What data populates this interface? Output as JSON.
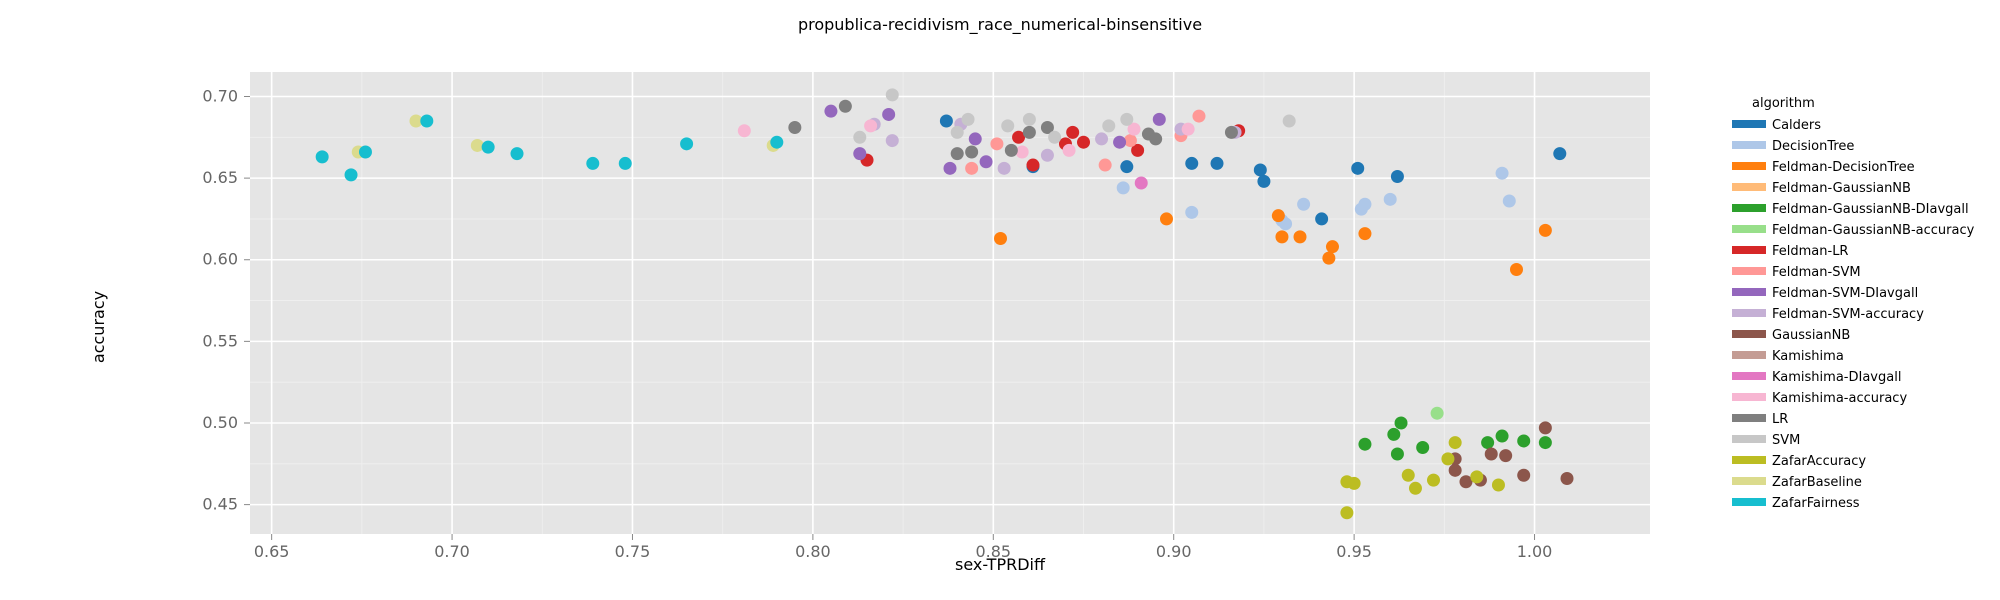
{
  "chart_data": {
    "type": "scatter",
    "title": "propublica-recidivism_race_numerical-binsensitive",
    "xlabel": "sex-TPRDiff",
    "ylabel": "accuracy",
    "xlim": [
      0.644,
      1.032
    ],
    "ylim": [
      0.432,
      0.715
    ],
    "x_ticks": [
      "0.65",
      "0.70",
      "0.75",
      "0.80",
      "0.85",
      "0.90",
      "0.95",
      "1.00"
    ],
    "y_ticks": [
      "0.45",
      "0.50",
      "0.55",
      "0.60",
      "0.65",
      "0.70"
    ],
    "grid": true,
    "legend": {
      "title": "algorithm",
      "placement": "right"
    },
    "series": [
      {
        "name": "Calders",
        "color": "#1f77b4",
        "points": [
          [
            0.837,
            0.685
          ],
          [
            0.861,
            0.657
          ],
          [
            0.887,
            0.657
          ],
          [
            0.905,
            0.659
          ],
          [
            0.912,
            0.659
          ],
          [
            0.924,
            0.655
          ],
          [
            0.925,
            0.648
          ],
          [
            0.941,
            0.625
          ],
          [
            0.951,
            0.656
          ],
          [
            0.962,
            0.651
          ],
          [
            1.007,
            0.665
          ]
        ]
      },
      {
        "name": "DecisionTree",
        "color": "#aec7e8",
        "points": [
          [
            0.886,
            0.644
          ],
          [
            0.905,
            0.629
          ],
          [
            0.93,
            0.624
          ],
          [
            0.931,
            0.622
          ],
          [
            0.936,
            0.634
          ],
          [
            0.952,
            0.631
          ],
          [
            0.953,
            0.634
          ],
          [
            0.96,
            0.637
          ],
          [
            0.991,
            0.653
          ],
          [
            0.993,
            0.636
          ]
        ]
      },
      {
        "name": "Feldman-DecisionTree",
        "color": "#ff7f0e",
        "points": [
          [
            0.852,
            0.613
          ],
          [
            0.898,
            0.625
          ],
          [
            0.929,
            0.627
          ],
          [
            0.93,
            0.614
          ],
          [
            0.935,
            0.614
          ],
          [
            0.943,
            0.601
          ],
          [
            0.944,
            0.608
          ],
          [
            0.953,
            0.616
          ],
          [
            0.995,
            0.594
          ],
          [
            1.003,
            0.618
          ]
        ]
      },
      {
        "name": "Feldman-GaussianNB",
        "color": "#ffbb78",
        "points": []
      },
      {
        "name": "Feldman-GaussianNB-DIavgall",
        "color": "#2ca02c",
        "points": [
          [
            0.953,
            0.487
          ],
          [
            0.961,
            0.493
          ],
          [
            0.962,
            0.481
          ],
          [
            0.963,
            0.5
          ],
          [
            0.969,
            0.485
          ],
          [
            0.987,
            0.488
          ],
          [
            0.991,
            0.492
          ],
          [
            0.997,
            0.489
          ],
          [
            1.003,
            0.488
          ]
        ]
      },
      {
        "name": "Feldman-GaussianNB-accuracy",
        "color": "#98df8a",
        "points": [
          [
            0.973,
            0.506
          ]
        ]
      },
      {
        "name": "Feldman-LR",
        "color": "#d62728",
        "points": [
          [
            0.815,
            0.661
          ],
          [
            0.857,
            0.675
          ],
          [
            0.861,
            0.658
          ],
          [
            0.87,
            0.671
          ],
          [
            0.872,
            0.678
          ],
          [
            0.875,
            0.672
          ],
          [
            0.89,
            0.667
          ],
          [
            0.918,
            0.679
          ]
        ]
      },
      {
        "name": "Feldman-SVM",
        "color": "#ff9896",
        "points": [
          [
            0.844,
            0.656
          ],
          [
            0.851,
            0.671
          ],
          [
            0.881,
            0.658
          ],
          [
            0.888,
            0.673
          ],
          [
            0.902,
            0.676
          ],
          [
            0.907,
            0.688
          ]
        ]
      },
      {
        "name": "Feldman-SVM-DIavgall",
        "color": "#9467bd",
        "points": [
          [
            0.805,
            0.691
          ],
          [
            0.813,
            0.665
          ],
          [
            0.821,
            0.689
          ],
          [
            0.838,
            0.656
          ],
          [
            0.845,
            0.674
          ],
          [
            0.848,
            0.66
          ],
          [
            0.885,
            0.672
          ],
          [
            0.896,
            0.686
          ]
        ]
      },
      {
        "name": "Feldman-SVM-accuracy",
        "color": "#c5b0d5",
        "points": [
          [
            0.817,
            0.683
          ],
          [
            0.822,
            0.673
          ],
          [
            0.841,
            0.683
          ],
          [
            0.853,
            0.656
          ],
          [
            0.865,
            0.664
          ],
          [
            0.88,
            0.674
          ],
          [
            0.902,
            0.68
          ],
          [
            0.917,
            0.678
          ]
        ]
      },
      {
        "name": "GaussianNB",
        "color": "#8c564b",
        "points": [
          [
            0.978,
            0.478
          ],
          [
            0.978,
            0.471
          ],
          [
            0.981,
            0.464
          ],
          [
            0.985,
            0.465
          ],
          [
            0.988,
            0.481
          ],
          [
            0.992,
            0.48
          ],
          [
            0.997,
            0.468
          ],
          [
            1.003,
            0.497
          ],
          [
            1.009,
            0.466
          ]
        ]
      },
      {
        "name": "Kamishima",
        "color": "#c49c94",
        "points": []
      },
      {
        "name": "Kamishima-DIavgall",
        "color": "#e377c2",
        "points": [
          [
            0.891,
            0.647
          ]
        ]
      },
      {
        "name": "Kamishima-accuracy",
        "color": "#f7b6d2",
        "points": [
          [
            0.781,
            0.679
          ],
          [
            0.816,
            0.682
          ],
          [
            0.858,
            0.666
          ],
          [
            0.871,
            0.667
          ],
          [
            0.889,
            0.68
          ],
          [
            0.904,
            0.68
          ]
        ]
      },
      {
        "name": "LR",
        "color": "#7f7f7f",
        "points": [
          [
            0.795,
            0.681
          ],
          [
            0.809,
            0.694
          ],
          [
            0.84,
            0.665
          ],
          [
            0.844,
            0.666
          ],
          [
            0.855,
            0.667
          ],
          [
            0.86,
            0.678
          ],
          [
            0.865,
            0.681
          ],
          [
            0.893,
            0.677
          ],
          [
            0.895,
            0.674
          ],
          [
            0.916,
            0.678
          ]
        ]
      },
      {
        "name": "SVM",
        "color": "#c7c7c7",
        "points": [
          [
            0.813,
            0.675
          ],
          [
            0.822,
            0.701
          ],
          [
            0.84,
            0.678
          ],
          [
            0.843,
            0.686
          ],
          [
            0.854,
            0.682
          ],
          [
            0.86,
            0.686
          ],
          [
            0.867,
            0.675
          ],
          [
            0.882,
            0.682
          ],
          [
            0.887,
            0.686
          ],
          [
            0.932,
            0.685
          ]
        ]
      },
      {
        "name": "ZafarAccuracy",
        "color": "#bcbd22",
        "points": [
          [
            0.948,
            0.445
          ],
          [
            0.948,
            0.464
          ],
          [
            0.95,
            0.463
          ],
          [
            0.965,
            0.468
          ],
          [
            0.967,
            0.46
          ],
          [
            0.972,
            0.465
          ],
          [
            0.976,
            0.478
          ],
          [
            0.978,
            0.488
          ],
          [
            0.984,
            0.467
          ],
          [
            0.99,
            0.462
          ]
        ]
      },
      {
        "name": "ZafarBaseline",
        "color": "#dbdb8d",
        "points": [
          [
            0.69,
            0.685
          ],
          [
            0.674,
            0.666
          ],
          [
            0.707,
            0.67
          ],
          [
            0.789,
            0.67
          ]
        ]
      },
      {
        "name": "ZafarFairness",
        "color": "#17becf",
        "points": [
          [
            0.664,
            0.663
          ],
          [
            0.672,
            0.652
          ],
          [
            0.676,
            0.666
          ],
          [
            0.693,
            0.685
          ],
          [
            0.71,
            0.669
          ],
          [
            0.718,
            0.665
          ],
          [
            0.739,
            0.659
          ],
          [
            0.748,
            0.659
          ],
          [
            0.765,
            0.671
          ],
          [
            0.79,
            0.672
          ]
        ]
      }
    ]
  }
}
